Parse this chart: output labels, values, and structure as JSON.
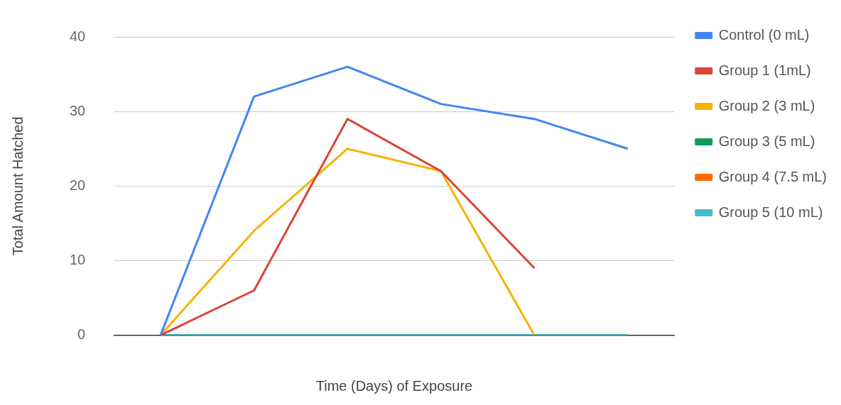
{
  "chart_data": {
    "type": "line",
    "xlabel": "Time (Days) of Exposure",
    "ylabel": "Total Amount Hatched",
    "categories": [
      null,
      null,
      null,
      null,
      null,
      null
    ],
    "series": [
      {
        "name": "Control (0 mL)",
        "color": "#4285f4",
        "values": [
          0,
          32,
          36,
          31,
          29,
          25
        ]
      },
      {
        "name": "Group 1 (1mL)",
        "color": "#db4437",
        "values": [
          0,
          6,
          29,
          22,
          9,
          null
        ]
      },
      {
        "name": "Group 2 (3 mL)",
        "color": "#f4b400",
        "values": [
          0,
          14,
          25,
          22,
          0,
          null
        ]
      },
      {
        "name": "Group 3 (5 mL)",
        "color": "#0f9d58",
        "values": [
          null,
          null,
          null,
          null,
          null,
          null
        ]
      },
      {
        "name": "Group 4 (7.5 mL)",
        "color": "#ff6d00",
        "values": [
          null,
          null,
          null,
          null,
          null,
          null
        ]
      },
      {
        "name": "Group 5 (10 mL)",
        "color": "#46bdc6",
        "values": [
          0,
          0,
          0,
          0,
          0,
          0
        ]
      }
    ],
    "ylim": [
      0,
      40
    ],
    "yticks": [
      0,
      10,
      20,
      30,
      40
    ],
    "grid": "y",
    "legend": "right",
    "marker": "none",
    "line_style": "solid"
  }
}
